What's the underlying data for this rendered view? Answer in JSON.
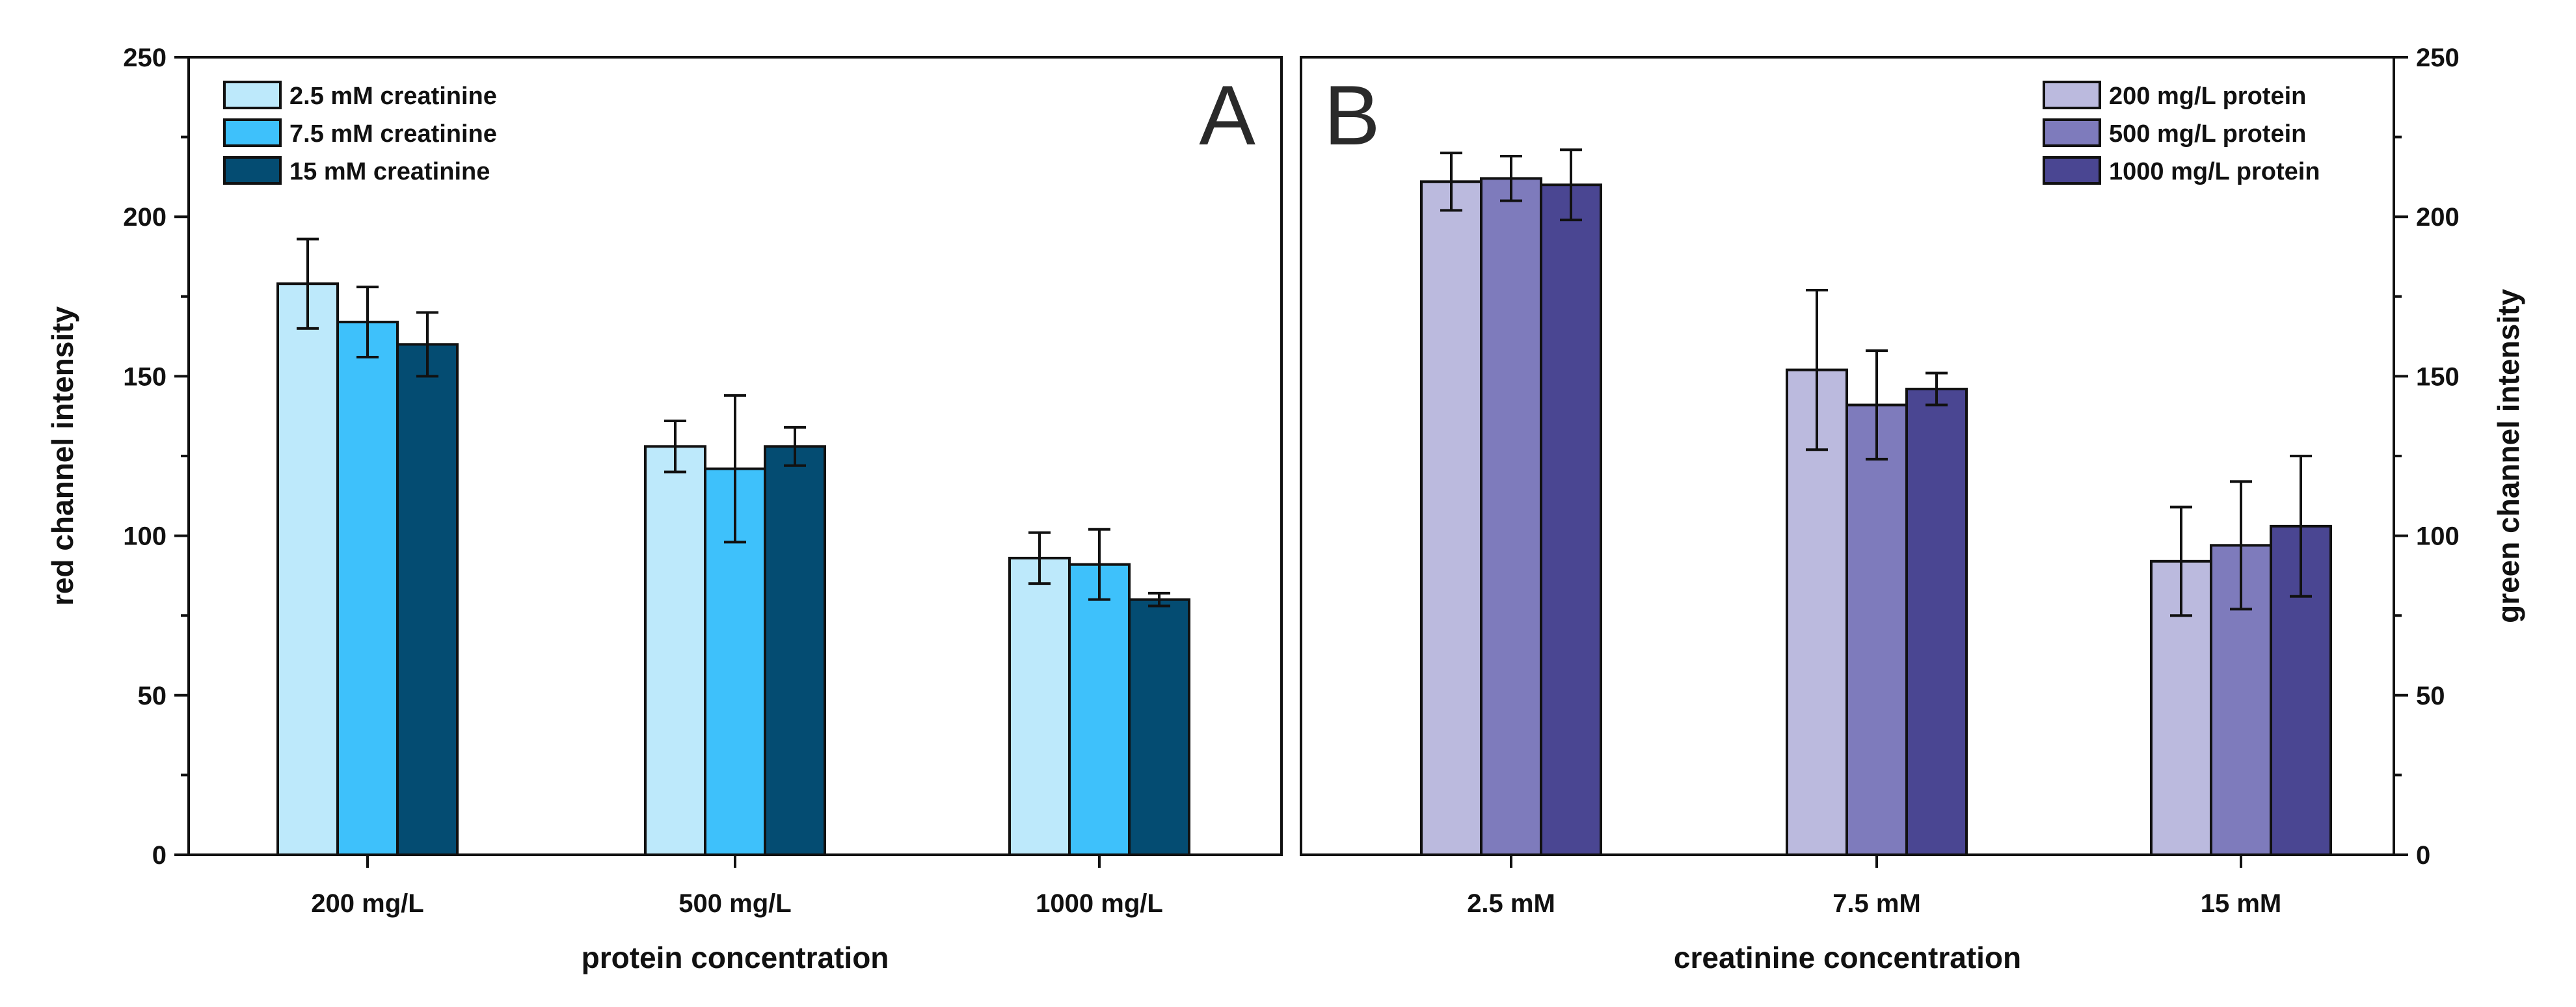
{
  "chart_data": [
    {
      "type": "bar",
      "panel_label": "A",
      "xlabel": "protein concentration",
      "ylabel": "red channel intensity",
      "y_axis_side": "left",
      "ylim": [
        0,
        250
      ],
      "yticks": [
        "0",
        "50",
        "100",
        "150",
        "200",
        "250"
      ],
      "categories": [
        "200 mg/L",
        "500 mg/L",
        "1000 mg/L"
      ],
      "legend_position": "top-left",
      "series": [
        {
          "name": "2.5 mM creatinine",
          "color": "#bde9fb",
          "values": [
            179,
            128,
            93
          ],
          "errors": [
            14,
            8,
            8
          ]
        },
        {
          "name": "7.5 mM creatinine",
          "color": "#3ec1fb",
          "values": [
            167,
            121,
            91
          ],
          "errors": [
            11,
            23,
            11
          ]
        },
        {
          "name": "15 mM creatinine",
          "color": "#044c72",
          "values": [
            160,
            128,
            80
          ],
          "errors": [
            10,
            6,
            2
          ]
        }
      ]
    },
    {
      "type": "bar",
      "panel_label": "B",
      "xlabel": "creatinine concentration",
      "ylabel": "green channel intensity",
      "y_axis_side": "right",
      "ylim": [
        0,
        250
      ],
      "yticks": [
        "0",
        "50",
        "100",
        "150",
        "200",
        "250"
      ],
      "categories": [
        "2.5 mM",
        "7.5 mM",
        "15 mM"
      ],
      "legend_position": "top-right",
      "series": [
        {
          "name": "200 mg/L protein",
          "color": "#bbbade",
          "values": [
            211,
            152,
            92
          ],
          "errors": [
            9,
            25,
            17
          ]
        },
        {
          "name": "500 mg/L protein",
          "color": "#7e7bbc",
          "values": [
            212,
            141,
            97
          ],
          "errors": [
            7,
            17,
            20
          ]
        },
        {
          "name": "1000 mg/L protein",
          "color": "#4a4692",
          "values": [
            210,
            146,
            103
          ],
          "errors": [
            11,
            5,
            22
          ]
        }
      ]
    }
  ]
}
